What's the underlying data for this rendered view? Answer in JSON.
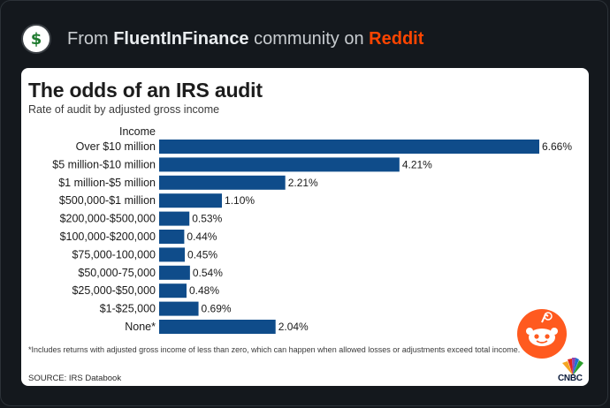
{
  "post": {
    "prefix": "From ",
    "community": "FluentInFinance",
    "middle": " community on ",
    "platform": "Reddit",
    "avatar_icon": "dollar-sign-icon"
  },
  "colors": {
    "background": "#14181d",
    "bar": "#0f4c8a",
    "reddit": "#ff4500"
  },
  "chart_data": {
    "type": "bar",
    "orientation": "horizontal",
    "title": "The odds of an IRS audit",
    "subtitle": "Rate of audit by adjusted gross income",
    "ylabel": "Income",
    "categories": [
      "Over $10 million",
      "$5 million-$10 million",
      "$1 million-$5 million",
      "$500,000-$1 million",
      "$200,000-$500,000",
      "$100,000-$200,000",
      "$75,000-100,000",
      "$50,000-75,000",
      "$25,000-$50,000",
      "$1-$25,000",
      "None*"
    ],
    "values": [
      6.66,
      4.21,
      2.21,
      1.1,
      0.53,
      0.44,
      0.45,
      0.54,
      0.48,
      0.69,
      2.04
    ],
    "value_labels": [
      "6.66%",
      "4.21%",
      "2.21%",
      "1.10%",
      "0.53%",
      "0.44%",
      "0.45%",
      "0.54%",
      "0.48%",
      "0.69%",
      "2.04%"
    ],
    "xlim": [
      0,
      6.66
    ],
    "grid": false,
    "legend": "none",
    "footnote": "*Includes returns with adjusted gross income of less than zero, which can happen when allowed losses or adjustments exceed total income.",
    "source": "SOURCE: IRS Databook",
    "brand": "CNBC"
  }
}
